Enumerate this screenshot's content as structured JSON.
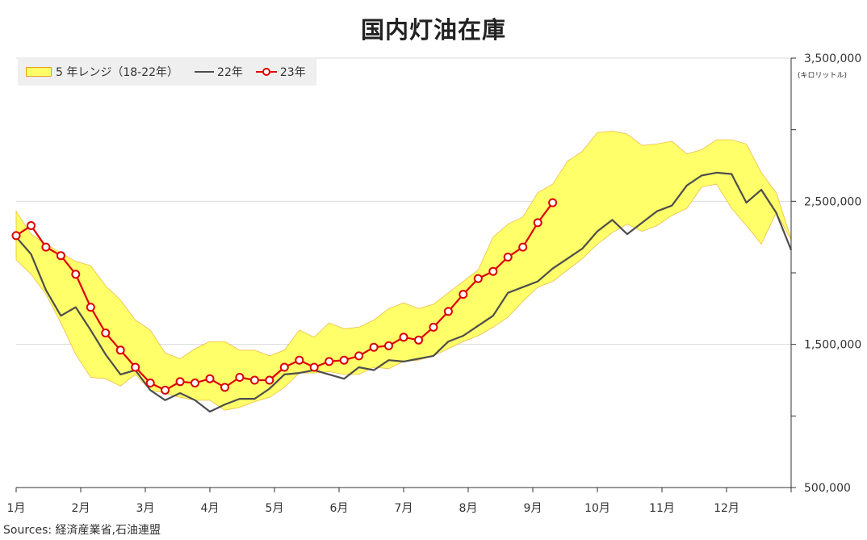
{
  "chart_data": {
    "type": "line",
    "title": "国内灯油在庫",
    "source": "Sources: 経済産業省,石油連盟",
    "unit": "(キロリットル)",
    "x_ticks": [
      "1月",
      "2月",
      "3月",
      "4月",
      "5月",
      "6月",
      "7月",
      "8月",
      "9月",
      "10月",
      "11月",
      "12月"
    ],
    "y_ticks": [
      "500,000",
      "1,500,000",
      "2,500,000",
      "3,500,000"
    ],
    "ylim": [
      500000,
      3500000
    ],
    "grid": true,
    "legend_position": "top-left",
    "weeks_in_year": 52,
    "colors": {
      "band_fill": "#ffff6a",
      "band_stroke": "#e8a020",
      "line_22": "#4d4d4d",
      "line_23": "#dd0000"
    },
    "series": [
      {
        "name": "5 年レンジ（18-22年）",
        "type": "area-range",
        "high": [
          2430000,
          2270000,
          2200000,
          2140000,
          2080000,
          2050000,
          1910000,
          1810000,
          1670000,
          1600000,
          1440000,
          1400000,
          1470000,
          1520000,
          1520000,
          1460000,
          1460000,
          1420000,
          1460000,
          1600000,
          1550000,
          1650000,
          1610000,
          1620000,
          1670000,
          1750000,
          1790000,
          1750000,
          1780000,
          1860000,
          1940000,
          2020000,
          2250000,
          2340000,
          2390000,
          2560000,
          2620000,
          2780000,
          2850000,
          2980000,
          2990000,
          2970000,
          2890000,
          2900000,
          2920000,
          2830000,
          2860000,
          2930000,
          2930000,
          2900000,
          2700000,
          2560000,
          2240000
        ],
        "low": [
          2090000,
          1990000,
          1850000,
          1650000,
          1430000,
          1270000,
          1260000,
          1210000,
          1290000,
          1180000,
          1160000,
          1130000,
          1110000,
          1110000,
          1040000,
          1060000,
          1100000,
          1130000,
          1200000,
          1300000,
          1300000,
          1310000,
          1290000,
          1290000,
          1340000,
          1330000,
          1380000,
          1390000,
          1420000,
          1470000,
          1520000,
          1560000,
          1620000,
          1690000,
          1800000,
          1900000,
          1940000,
          2020000,
          2100000,
          2200000,
          2280000,
          2340000,
          2290000,
          2330000,
          2400000,
          2450000,
          2600000,
          2620000,
          2450000,
          2330000,
          2200000,
          2420000,
          2230000
        ]
      },
      {
        "name": "22年",
        "type": "line",
        "values": [
          2250000,
          2130000,
          1880000,
          1700000,
          1760000,
          1600000,
          1430000,
          1290000,
          1320000,
          1180000,
          1110000,
          1160000,
          1110000,
          1030000,
          1080000,
          1120000,
          1120000,
          1190000,
          1290000,
          1300000,
          1320000,
          1290000,
          1260000,
          1340000,
          1320000,
          1390000,
          1380000,
          1400000,
          1420000,
          1520000,
          1560000,
          1630000,
          1700000,
          1860000,
          1900000,
          1940000,
          2030000,
          2100000,
          2170000,
          2290000,
          2370000,
          2270000,
          2350000,
          2430000,
          2470000,
          2610000,
          2680000,
          2700000,
          2690000,
          2490000,
          2580000,
          2420000,
          2160000
        ]
      },
      {
        "name": "23年",
        "type": "line",
        "marker": "circle",
        "values": [
          2260000,
          2330000,
          2180000,
          2120000,
          1990000,
          1760000,
          1580000,
          1460000,
          1340000,
          1230000,
          1180000,
          1240000,
          1230000,
          1260000,
          1200000,
          1270000,
          1250000,
          1250000,
          1340000,
          1390000,
          1340000,
          1380000,
          1390000,
          1420000,
          1480000,
          1490000,
          1550000,
          1530000,
          1620000,
          1730000,
          1850000,
          1960000,
          2010000,
          2110000,
          2180000,
          2350000,
          2490000
        ]
      }
    ]
  }
}
